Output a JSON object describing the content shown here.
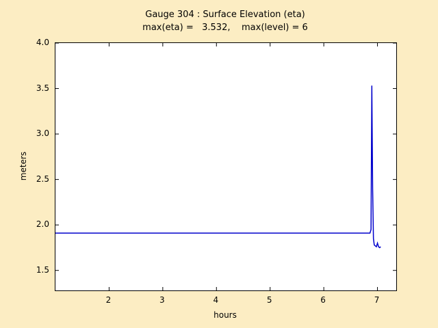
{
  "figure": {
    "background": "#fcedc3",
    "plot_background": "#ffffff",
    "title_line1": "Gauge 304 : Surface Elevation (eta)",
    "title_line2": "max(eta) =   3.532,    max(level) = 6",
    "xlabel": "hours",
    "ylabel": "meters"
  },
  "chart_data": {
    "type": "line",
    "title": "Gauge 304 : Surface Elevation (eta)",
    "subtitle": "max(eta) =   3.532,    max(level) = 6",
    "xlabel": "hours",
    "ylabel": "meters",
    "xlim": [
      1.0,
      7.35
    ],
    "ylim": [
      1.28,
      4.0
    ],
    "xticks": [
      2,
      3,
      4,
      5,
      6,
      7
    ],
    "xtick_labels": [
      "2",
      "3",
      "4",
      "5",
      "6",
      "7"
    ],
    "yticks": [
      1.5,
      2.0,
      2.5,
      3.0,
      3.5,
      4.0
    ],
    "ytick_labels": [
      "1.5",
      "2.0",
      "2.5",
      "3.0",
      "3.5",
      "4.0"
    ],
    "grid": false,
    "legend": "none",
    "line_color": "#0000cc",
    "max_eta": 3.532,
    "max_level": 6,
    "series": [
      {
        "name": "eta",
        "x": [
          1.0,
          2.0,
          3.0,
          4.0,
          5.0,
          6.0,
          6.5,
          6.8,
          6.86,
          6.88,
          6.895,
          6.91,
          6.925,
          6.94,
          6.96,
          6.98,
          7.0,
          7.02,
          7.04,
          7.06
        ],
        "y": [
          1.91,
          1.91,
          1.91,
          1.91,
          1.91,
          1.91,
          1.91,
          1.91,
          1.91,
          1.95,
          3.532,
          2.4,
          1.85,
          1.78,
          1.77,
          1.76,
          1.8,
          1.76,
          1.75,
          1.76
        ]
      }
    ]
  }
}
